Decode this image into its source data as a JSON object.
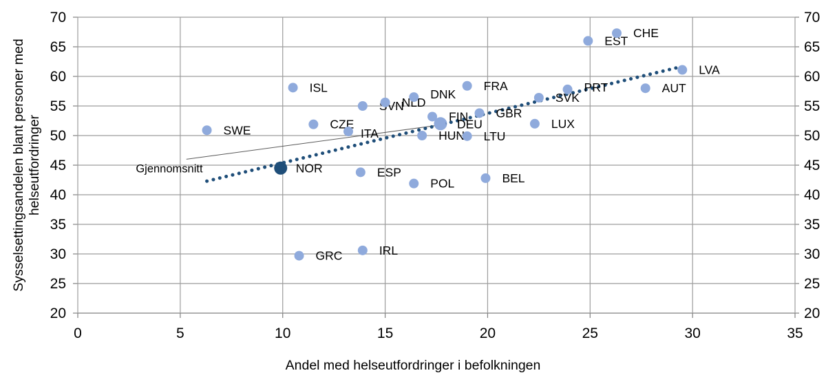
{
  "chart_data": {
    "type": "scatter",
    "title": "",
    "xlabel": "Andel med helseutfordringer i befolkningen",
    "ylabel_line1": "Sysselsettingsandelen blant personer med",
    "ylabel_line2": "helseutfordringer",
    "xlim": [
      0,
      35
    ],
    "ylim": [
      20,
      70
    ],
    "x_ticks": [
      0,
      5,
      10,
      15,
      20,
      25,
      30,
      35
    ],
    "y_ticks": [
      20,
      25,
      30,
      35,
      40,
      45,
      50,
      55,
      60,
      65,
      70
    ],
    "grid": true,
    "legend_position": "none",
    "colors": {
      "point": "#8faadc",
      "norway": "#1f4e79",
      "trend": "#1f4e79",
      "grid": "#9c9c9c",
      "axis": "#808080",
      "text": "#000000",
      "callout": "#595959"
    },
    "points": [
      {
        "code": "SWE",
        "x": 6.3,
        "y": 50.9
      },
      {
        "code": "ISL",
        "x": 10.5,
        "y": 58.1
      },
      {
        "code": "GRC",
        "x": 10.8,
        "y": 29.7
      },
      {
        "code": "CZE",
        "x": 11.5,
        "y": 51.9
      },
      {
        "code": "ITA",
        "x": 13.2,
        "y": 50.7,
        "ldx": -6,
        "ldy": 3
      },
      {
        "code": "ESP",
        "x": 13.8,
        "y": 43.8
      },
      {
        "code": "SVN",
        "x": 13.9,
        "y": 55.0
      },
      {
        "code": "IRL",
        "x": 13.9,
        "y": 30.6
      },
      {
        "code": "NLD",
        "x": 15.0,
        "y": 55.6
      },
      {
        "code": "DNK",
        "x": 16.4,
        "y": 56.5,
        "ldy": -4
      },
      {
        "code": "POL",
        "x": 16.4,
        "y": 41.9
      },
      {
        "code": "HUN",
        "x": 16.8,
        "y": 50.0
      },
      {
        "code": "FIN",
        "x": 17.3,
        "y": 53.2
      },
      {
        "code": "DEU",
        "x": 17.7,
        "y": 51.9,
        "size": 8
      },
      {
        "code": "LTU",
        "x": 19.0,
        "y": 49.9
      },
      {
        "code": "FRA",
        "x": 19.0,
        "y": 58.4
      },
      {
        "code": "GBR",
        "x": 19.6,
        "y": 53.8
      },
      {
        "code": "BEL",
        "x": 19.9,
        "y": 42.8
      },
      {
        "code": "LUX",
        "x": 22.3,
        "y": 52.0
      },
      {
        "code": "SVK",
        "x": 22.5,
        "y": 56.4
      },
      {
        "code": "PRT",
        "x": 23.9,
        "y": 57.8,
        "ldy": -3
      },
      {
        "code": "EST",
        "x": 24.9,
        "y": 66.0
      },
      {
        "code": "CHE",
        "x": 26.3,
        "y": 67.3
      },
      {
        "code": "AUT",
        "x": 27.7,
        "y": 58.0
      },
      {
        "code": "LVA",
        "x": 29.5,
        "y": 61.1
      }
    ],
    "norway": {
      "code": "NOR",
      "x": 9.9,
      "y": 44.5
    },
    "average": {
      "label": "Gjennomsnitt",
      "x": 17.7,
      "y": 52.0,
      "label_x": 3.0,
      "label_y": 44.0,
      "callout_from": {
        "x": 5.3,
        "y": 46.0
      }
    },
    "trend": {
      "style": "dotted",
      "x1": 6.3,
      "y1": 42.3,
      "x2": 29.4,
      "y2": 61.6
    }
  }
}
